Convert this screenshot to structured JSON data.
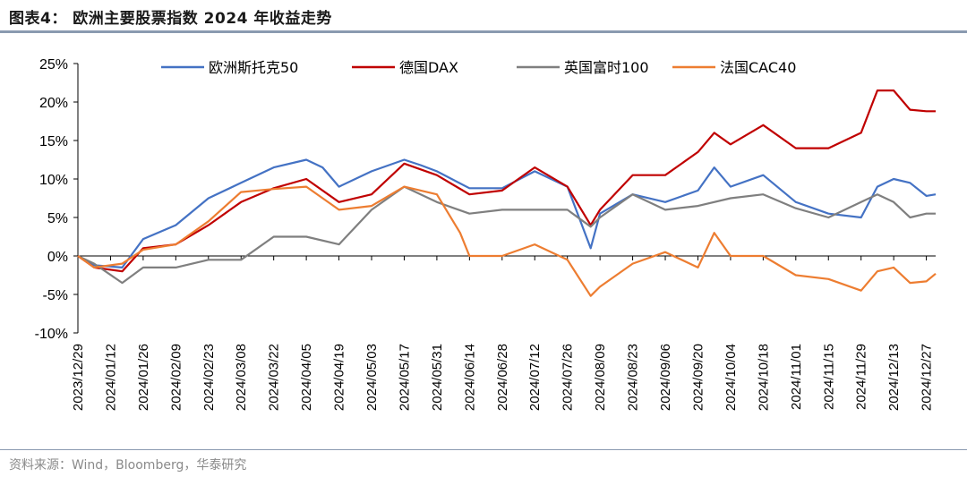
{
  "header": {
    "title": "图表4： 欧洲主要股票指数 2024 年收益走势"
  },
  "footer": {
    "source": "资料来源：Wind，Bloomberg，华泰研究"
  },
  "colors": {
    "rule": "#8a9ab0",
    "axis": "#000000",
    "series": [
      "#4472c4",
      "#c00000",
      "#7f7f7f",
      "#ed7d31"
    ]
  },
  "chart_data": {
    "type": "line",
    "title": "",
    "xlabel": "",
    "ylabel": "",
    "y_unit": "%",
    "ylim": [
      -10,
      25
    ],
    "yticks": [
      -10,
      -5,
      0,
      5,
      10,
      15,
      20,
      25
    ],
    "ytick_labels": [
      "-10%",
      "-5%",
      "0%",
      "5%",
      "10%",
      "15%",
      "20%",
      "25%"
    ],
    "grid": false,
    "legend": "top",
    "x_range": [
      "2023/12/29",
      "2024/12/31"
    ],
    "x_tick_labels": [
      "2023/12/29",
      "2024/01/12",
      "2024/01/26",
      "2024/02/09",
      "2024/02/23",
      "2024/03/08",
      "2024/03/22",
      "2024/04/05",
      "2024/04/19",
      "2024/05/03",
      "2024/05/17",
      "2024/05/31",
      "2024/06/14",
      "2024/06/28",
      "2024/07/12",
      "2024/07/26",
      "2024/08/09",
      "2024/08/23",
      "2024/09/06",
      "2024/09/20",
      "2024/10/04",
      "2024/10/18",
      "2024/11/01",
      "2024/11/15",
      "2024/11/29",
      "2024/12/13",
      "2024/12/27"
    ],
    "series": [
      {
        "name": "欧洲斯托克50",
        "x": [
          "2023/12/29",
          "2024/01/05",
          "2024/01/17",
          "2024/01/26",
          "2024/02/09",
          "2024/02/23",
          "2024/03/08",
          "2024/03/22",
          "2024/04/05",
          "2024/04/12",
          "2024/04/19",
          "2024/05/03",
          "2024/05/17",
          "2024/05/24",
          "2024/05/31",
          "2024/06/14",
          "2024/06/28",
          "2024/07/12",
          "2024/07/26",
          "2024/08/05",
          "2024/08/09",
          "2024/08/23",
          "2024/09/06",
          "2024/09/20",
          "2024/09/27",
          "2024/10/04",
          "2024/10/18",
          "2024/11/01",
          "2024/11/15",
          "2024/11/29",
          "2024/12/06",
          "2024/12/13",
          "2024/12/20",
          "2024/12/27",
          "2024/12/31"
        ],
        "y": [
          0,
          -1.2,
          -1.5,
          2.2,
          4,
          7.5,
          9.5,
          11.5,
          12.5,
          11.5,
          9,
          11,
          12.5,
          11.8,
          11,
          8.8,
          8.8,
          11,
          9,
          1,
          5.5,
          8,
          7,
          8.5,
          11.5,
          9,
          10.5,
          7,
          5.5,
          5,
          9,
          10,
          9.5,
          7.8,
          8
        ]
      },
      {
        "name": "德国DAX",
        "x": [
          "2023/12/29",
          "2024/01/05",
          "2024/01/17",
          "2024/01/26",
          "2024/02/09",
          "2024/02/23",
          "2024/03/08",
          "2024/03/22",
          "2024/04/05",
          "2024/04/19",
          "2024/05/03",
          "2024/05/17",
          "2024/05/31",
          "2024/06/14",
          "2024/06/28",
          "2024/07/12",
          "2024/07/26",
          "2024/08/05",
          "2024/08/09",
          "2024/08/23",
          "2024/09/06",
          "2024/09/20",
          "2024/09/27",
          "2024/10/04",
          "2024/10/18",
          "2024/11/01",
          "2024/11/15",
          "2024/11/29",
          "2024/12/06",
          "2024/12/13",
          "2024/12/20",
          "2024/12/27",
          "2024/12/31"
        ],
        "y": [
          0,
          -1.5,
          -2,
          1,
          1.5,
          4,
          7,
          8.8,
          10,
          7,
          8,
          12,
          10.5,
          8,
          8.5,
          11.5,
          9,
          4,
          6,
          10.5,
          10.5,
          13.5,
          16,
          14.5,
          17,
          14,
          14,
          16,
          21.5,
          21.5,
          19,
          18.8,
          18.8
        ]
      },
      {
        "name": "英国富时100",
        "x": [
          "2023/12/29",
          "2024/01/05",
          "2024/01/17",
          "2024/01/26",
          "2024/02/09",
          "2024/02/23",
          "2024/03/08",
          "2024/03/22",
          "2024/04/05",
          "2024/04/19",
          "2024/05/03",
          "2024/05/17",
          "2024/05/31",
          "2024/06/14",
          "2024/06/28",
          "2024/07/12",
          "2024/07/26",
          "2024/08/05",
          "2024/08/09",
          "2024/08/23",
          "2024/09/06",
          "2024/09/20",
          "2024/10/04",
          "2024/10/18",
          "2024/11/01",
          "2024/11/15",
          "2024/11/29",
          "2024/12/06",
          "2024/12/13",
          "2024/12/20",
          "2024/12/27",
          "2024/12/31"
        ],
        "y": [
          0,
          -1,
          -3.5,
          -1.5,
          -1.5,
          -0.5,
          -0.5,
          2.5,
          2.5,
          1.5,
          6,
          9,
          7,
          5.5,
          6,
          6,
          6,
          3.8,
          5,
          8,
          6,
          6.5,
          7.5,
          8,
          6.2,
          5,
          7,
          8,
          7,
          5,
          5.5,
          5.5
        ]
      },
      {
        "name": "法国CAC40",
        "x": [
          "2023/12/29",
          "2024/01/05",
          "2024/01/17",
          "2024/01/26",
          "2024/02/09",
          "2024/02/23",
          "2024/03/08",
          "2024/03/22",
          "2024/04/05",
          "2024/04/19",
          "2024/05/03",
          "2024/05/17",
          "2024/05/31",
          "2024/06/10",
          "2024/06/14",
          "2024/06/28",
          "2024/07/12",
          "2024/07/26",
          "2024/08/05",
          "2024/08/09",
          "2024/08/23",
          "2024/09/06",
          "2024/09/20",
          "2024/09/27",
          "2024/10/04",
          "2024/10/18",
          "2024/11/01",
          "2024/11/15",
          "2024/11/29",
          "2024/12/06",
          "2024/12/13",
          "2024/12/20",
          "2024/12/27",
          "2024/12/31"
        ],
        "y": [
          0,
          -1.5,
          -1,
          0.8,
          1.5,
          4.5,
          8.3,
          8.7,
          9,
          6,
          6.5,
          9,
          8,
          3,
          0,
          0,
          1.5,
          -0.5,
          -5.2,
          -4,
          -1,
          0.5,
          -1.5,
          3,
          0,
          0,
          -2.5,
          -3,
          -4.5,
          -2,
          -1.5,
          -3.5,
          -3.3,
          -2.3
        ]
      }
    ]
  }
}
